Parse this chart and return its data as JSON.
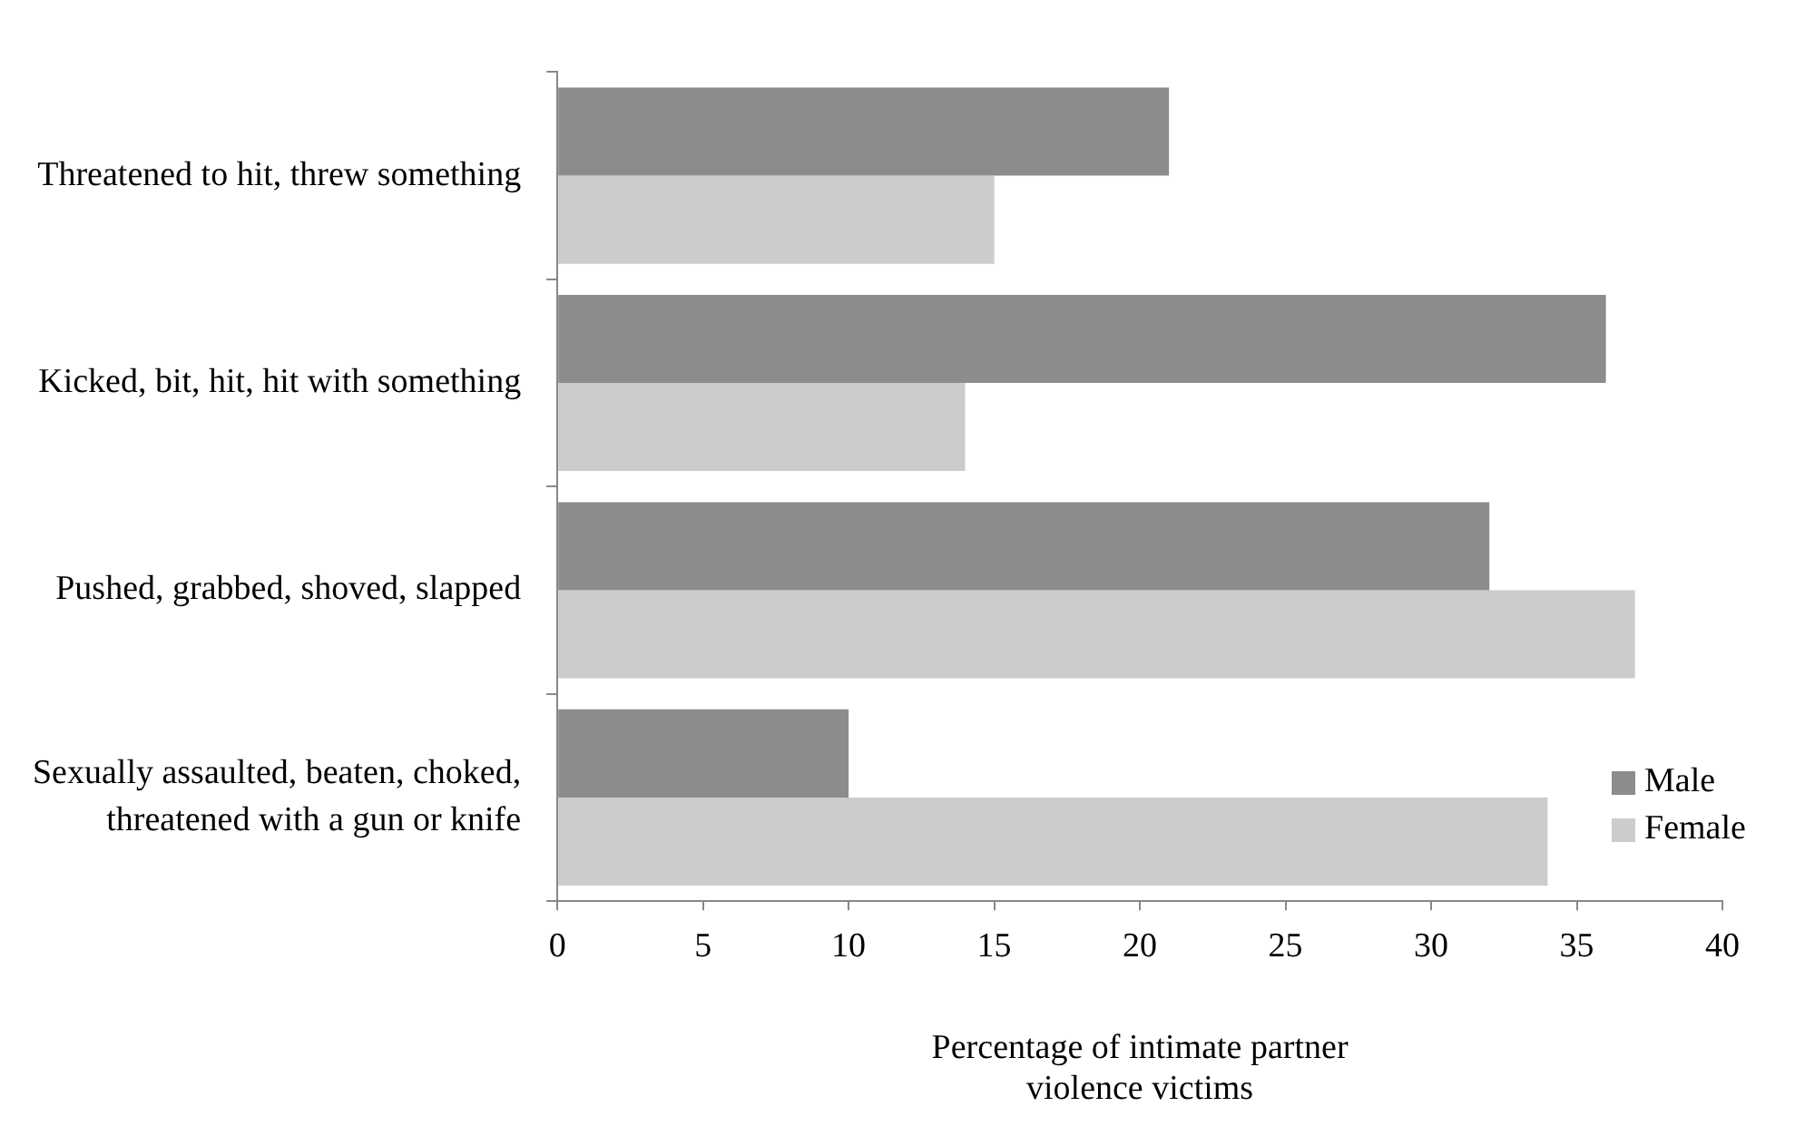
{
  "chart_data": {
    "type": "bar",
    "orientation": "horizontal",
    "xlabel": "Percentage of intimate partner violence victims",
    "categories": [
      "Threatened to hit, threw something",
      "Kicked, bit, hit, hit with something",
      "Pushed, grabbed, shoved, slapped",
      "Sexually assaulted, beaten, choked, threatened with a gun or knife"
    ],
    "series": [
      {
        "name": "Male",
        "color": "#8c8c8c",
        "values": [
          21,
          36,
          32,
          10
        ]
      },
      {
        "name": "Female",
        "color": "#cccccc",
        "values": [
          15,
          14,
          37,
          34
        ]
      }
    ],
    "xlim": [
      0,
      40
    ],
    "xticks": [
      0,
      5,
      10,
      15,
      20,
      25,
      30,
      35,
      40
    ],
    "grid": false,
    "legend": "bottom right"
  }
}
